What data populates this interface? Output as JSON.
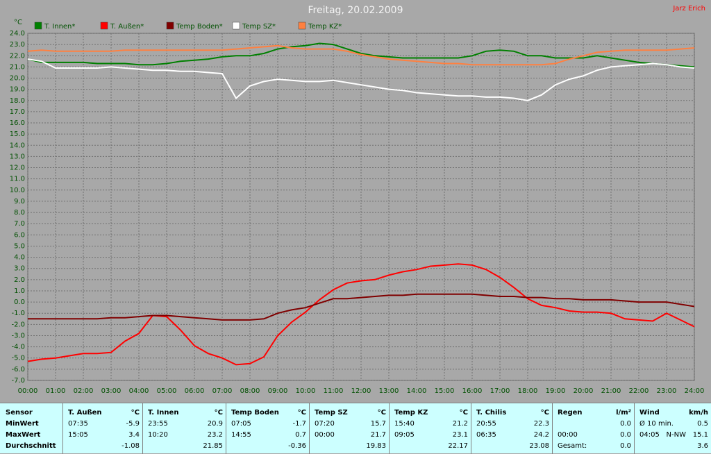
{
  "chart_data": {
    "type": "line",
    "title": "Freitag, 20.02.2009",
    "author": "Jarz Erich",
    "y_label": "°C",
    "grid": true,
    "legend": "top-left",
    "x": [
      0,
      0.5,
      1,
      1.5,
      2,
      2.5,
      3,
      3.5,
      4,
      4.5,
      5,
      5.5,
      6,
      6.5,
      7,
      7.5,
      8,
      8.5,
      9,
      9.5,
      10,
      10.5,
      11,
      11.5,
      12,
      12.5,
      13,
      13.5,
      14,
      14.5,
      15,
      15.5,
      16,
      16.5,
      17,
      17.5,
      18,
      18.5,
      19,
      19.5,
      20,
      20.5,
      21,
      21.5,
      22,
      22.5,
      23,
      23.5,
      24
    ],
    "xlim": [
      0,
      24
    ],
    "xticks": [
      {
        "value": 0,
        "label": "00:00"
      },
      {
        "value": 1,
        "label": "01:00"
      },
      {
        "value": 2,
        "label": "02:00"
      },
      {
        "value": 3,
        "label": "03:00"
      },
      {
        "value": 4,
        "label": "04:00"
      },
      {
        "value": 5,
        "label": "05:00"
      },
      {
        "value": 6,
        "label": "06:00"
      },
      {
        "value": 7,
        "label": "07:00"
      },
      {
        "value": 8,
        "label": "08:00"
      },
      {
        "value": 9,
        "label": "09:00"
      },
      {
        "value": 10,
        "label": "10:00"
      },
      {
        "value": 11,
        "label": "11:00"
      },
      {
        "value": 12,
        "label": "12:00"
      },
      {
        "value": 13,
        "label": "13:00"
      },
      {
        "value": 14,
        "label": "14:00"
      },
      {
        "value": 15,
        "label": "15:00"
      },
      {
        "value": 16,
        "label": "16:00"
      },
      {
        "value": 17,
        "label": "17:00"
      },
      {
        "value": 18,
        "label": "18:00"
      },
      {
        "value": 19,
        "label": "19:00"
      },
      {
        "value": 20,
        "label": "20:00"
      },
      {
        "value": 21,
        "label": "21:00"
      },
      {
        "value": 22,
        "label": "22:00"
      },
      {
        "value": 23,
        "label": "23:00"
      },
      {
        "value": 24,
        "label": "24:00"
      }
    ],
    "ylim": [
      -7,
      24
    ],
    "yticks": [
      {
        "value": 24,
        "label": "24.0"
      },
      {
        "value": 23,
        "label": "23.0"
      },
      {
        "value": 22,
        "label": "22.0"
      },
      {
        "value": 21,
        "label": "21.0"
      },
      {
        "value": 20,
        "label": "20.0"
      },
      {
        "value": 19,
        "label": "19.0"
      },
      {
        "value": 18,
        "label": "18.0"
      },
      {
        "value": 17,
        "label": "17.0"
      },
      {
        "value": 16,
        "label": "16.0"
      },
      {
        "value": 15,
        "label": "15.0"
      },
      {
        "value": 14,
        "label": "14.0"
      },
      {
        "value": 13,
        "label": "13.0"
      },
      {
        "value": 12,
        "label": "12.0"
      },
      {
        "value": 11,
        "label": "11.0"
      },
      {
        "value": 10,
        "label": "10.0"
      },
      {
        "value": 9,
        "label": "9.0"
      },
      {
        "value": 8,
        "label": "8.0"
      },
      {
        "value": 7,
        "label": "7.0"
      },
      {
        "value": 6,
        "label": "6.0"
      },
      {
        "value": 5,
        "label": "5.0"
      },
      {
        "value": 4,
        "label": "4.0"
      },
      {
        "value": 3,
        "label": "3.0"
      },
      {
        "value": 2,
        "label": "2.0"
      },
      {
        "value": 1,
        "label": "1.0"
      },
      {
        "value": 0,
        "label": "0.0"
      },
      {
        "value": -1,
        "label": "-1.0"
      },
      {
        "value": -2,
        "label": "-2.0"
      },
      {
        "value": -3,
        "label": "-3.0"
      },
      {
        "value": -4,
        "label": "-4.0"
      },
      {
        "value": -5,
        "label": "-5.0"
      },
      {
        "value": -6,
        "label": "-6.0"
      },
      {
        "value": -7,
        "label": "-7.0"
      }
    ],
    "series": [
      {
        "name": "T. Innen*",
        "color": "#008000",
        "values": [
          21.7,
          21.4,
          21.4,
          21.4,
          21.4,
          21.3,
          21.3,
          21.3,
          21.2,
          21.2,
          21.3,
          21.5,
          21.6,
          21.7,
          21.9,
          22.0,
          22.0,
          22.2,
          22.6,
          22.8,
          22.9,
          23.1,
          23.0,
          22.6,
          22.2,
          22.0,
          21.9,
          21.8,
          21.8,
          21.8,
          21.8,
          21.8,
          22.0,
          22.4,
          22.5,
          22.4,
          22.0,
          22.0,
          21.8,
          21.8,
          21.8,
          22.0,
          21.8,
          21.6,
          21.4,
          21.3,
          21.2,
          21.1,
          21.0
        ]
      },
      {
        "name": "T. Außen*",
        "color": "#ff0000",
        "values": [
          -5.3,
          -5.1,
          -5.0,
          -4.8,
          -4.6,
          -4.6,
          -4.5,
          -3.5,
          -2.8,
          -1.2,
          -1.3,
          -2.5,
          -3.9,
          -4.6,
          -5.0,
          -5.6,
          -5.5,
          -4.9,
          -3.0,
          -1.8,
          -0.9,
          0.2,
          1.1,
          1.7,
          1.9,
          2.0,
          2.4,
          2.7,
          2.9,
          3.2,
          3.3,
          3.4,
          3.3,
          2.9,
          2.2,
          1.3,
          0.3,
          -0.3,
          -0.5,
          -0.8,
          -0.9,
          -0.9,
          -1.0,
          -1.5,
          -1.6,
          -1.7,
          -1.0,
          -1.6,
          -2.2
        ]
      },
      {
        "name": "Temp Boden*",
        "color": "#800000",
        "values": [
          -1.5,
          -1.5,
          -1.5,
          -1.5,
          -1.5,
          -1.5,
          -1.4,
          -1.4,
          -1.3,
          -1.2,
          -1.2,
          -1.3,
          -1.4,
          -1.5,
          -1.6,
          -1.6,
          -1.6,
          -1.5,
          -1.0,
          -0.7,
          -0.5,
          -0.1,
          0.3,
          0.3,
          0.4,
          0.5,
          0.6,
          0.6,
          0.7,
          0.7,
          0.7,
          0.7,
          0.7,
          0.6,
          0.5,
          0.5,
          0.4,
          0.4,
          0.3,
          0.3,
          0.2,
          0.2,
          0.2,
          0.1,
          0.0,
          0.0,
          0.0,
          -0.2,
          -0.4
        ]
      },
      {
        "name": "Temp SZ*",
        "color": "#ffffff",
        "values": [
          21.7,
          21.5,
          20.9,
          20.9,
          20.9,
          20.9,
          21.0,
          20.9,
          20.8,
          20.7,
          20.7,
          20.6,
          20.6,
          20.5,
          20.4,
          18.2,
          19.3,
          19.7,
          19.9,
          19.8,
          19.7,
          19.7,
          19.8,
          19.6,
          19.4,
          19.2,
          19.0,
          18.9,
          18.7,
          18.6,
          18.5,
          18.4,
          18.4,
          18.3,
          18.3,
          18.2,
          18.0,
          18.5,
          19.4,
          19.9,
          20.2,
          20.7,
          21.0,
          21.1,
          21.2,
          21.3,
          21.2,
          21.0,
          20.9
        ]
      },
      {
        "name": "Temp KZ*",
        "color": "#ff8040",
        "values": [
          22.4,
          22.5,
          22.4,
          22.4,
          22.4,
          22.4,
          22.4,
          22.5,
          22.5,
          22.5,
          22.5,
          22.5,
          22.5,
          22.5,
          22.5,
          22.6,
          22.7,
          22.8,
          22.9,
          22.7,
          22.6,
          22.6,
          22.6,
          22.4,
          22.1,
          21.9,
          21.7,
          21.6,
          21.5,
          21.4,
          21.3,
          21.3,
          21.2,
          21.2,
          21.2,
          21.2,
          21.2,
          21.2,
          21.3,
          21.7,
          22.0,
          22.3,
          22.4,
          22.5,
          22.5,
          22.5,
          22.5,
          22.6,
          22.7
        ]
      }
    ]
  },
  "table": {
    "corner": "Sensor",
    "row_labels": [
      "MinWert",
      "MaxWert",
      "Durchschnitt"
    ],
    "groups": [
      {
        "name": "T. Außen",
        "unit": "°C",
        "rows": [
          [
            "07:35",
            "-5.9"
          ],
          [
            "15:05",
            "3.4"
          ],
          [
            "-1.08"
          ]
        ]
      },
      {
        "name": "T. Innen",
        "unit": "°C",
        "rows": [
          [
            "23:55",
            "20.9"
          ],
          [
            "10:20",
            "23.2"
          ],
          [
            "21.85"
          ]
        ]
      },
      {
        "name": "Temp Boden",
        "unit": "°C",
        "rows": [
          [
            "07:05",
            "-1.7"
          ],
          [
            "14:55",
            "0.7"
          ],
          [
            "-0.36"
          ]
        ]
      },
      {
        "name": "Temp SZ",
        "unit": "°C",
        "rows": [
          [
            "07:20",
            "15.7"
          ],
          [
            "00:00",
            "21.7"
          ],
          [
            "19.83"
          ]
        ]
      },
      {
        "name": "Temp KZ",
        "unit": "°C",
        "rows": [
          [
            "15:40",
            "21.2"
          ],
          [
            "09:05",
            "23.1"
          ],
          [
            "22.17"
          ]
        ]
      },
      {
        "name": "T. Chilis",
        "unit": "°C",
        "rows": [
          [
            "20:55",
            "22.3"
          ],
          [
            "06:35",
            "24.2"
          ],
          [
            "23.08"
          ]
        ]
      },
      {
        "name": "Regen",
        "unit": "l/m²",
        "rows": [
          [
            "0.0"
          ],
          [
            "00:00",
            "0.0"
          ],
          [
            "Gesamt:",
            "0.0"
          ]
        ]
      },
      {
        "name": "Wind",
        "unit": "km/h",
        "rows": [
          [
            "Ø 10 min.",
            "0.5"
          ],
          [
            "04:05",
            "N-NW",
            "15.1"
          ],
          [
            "3.6"
          ]
        ]
      }
    ]
  }
}
